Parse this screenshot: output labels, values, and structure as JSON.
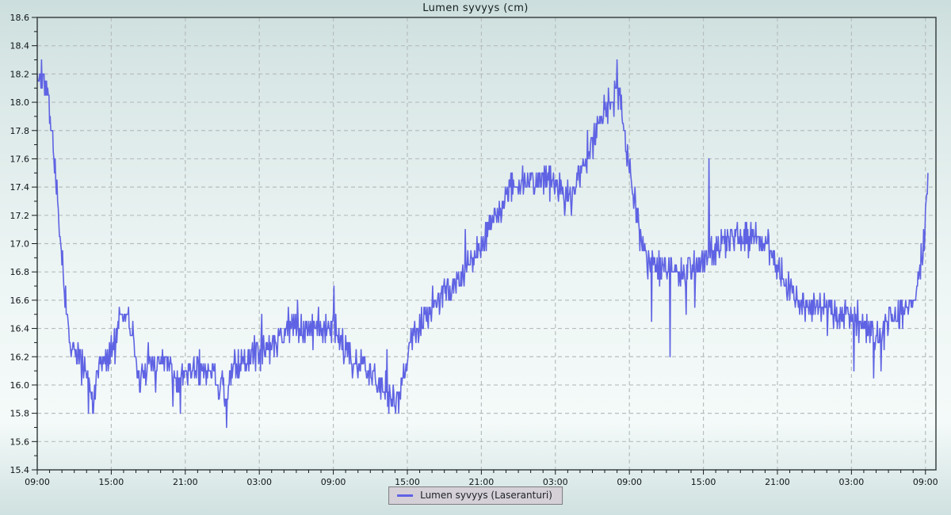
{
  "chart_data": {
    "type": "line",
    "title": "Lumen syvyys (cm)",
    "legend": {
      "label": "Lumen syvyys (Laseranturi)",
      "position": "bottom-center"
    },
    "x_axis": {
      "labels": [
        "09:00",
        "15:00",
        "21:00",
        "03:00",
        "09:00",
        "15:00",
        "21:00",
        "03:00",
        "09:00",
        "15:00",
        "21:00",
        "03:00",
        "09:00"
      ],
      "major_step_hours": 6,
      "minor_step_hours": 1,
      "domain_hours": [
        0,
        72.85
      ],
      "data_end_hour": 72.2
    },
    "y_axis": {
      "min": 15.4,
      "max": 18.6,
      "major_step": 0.2,
      "minor_step": 0.1,
      "unit": "cm"
    },
    "grid": {
      "style": "dashed",
      "majors_only": true
    },
    "colors": {
      "line": "#5f63e3",
      "grid": "#b7bdbd",
      "axis": "#3a4242",
      "text": "#101418",
      "legend_bg": "#d5d0d8",
      "legend_border": "#7d7d7d",
      "bg_top": "#ccdedd",
      "bg_mid": "#eef6f5",
      "bg_bottom": "#cfe1e0"
    },
    "series": [
      {
        "name": "Lumen syvyys (Laseranturi)",
        "sample_step_hours": 0.05,
        "noise_amplitude": 0.14,
        "quantize_step": 0.05,
        "trend_keypoints": [
          [
            0.0,
            18.18
          ],
          [
            0.6,
            18.18
          ],
          [
            0.9,
            18.05
          ],
          [
            1.2,
            17.75
          ],
          [
            1.5,
            17.45
          ],
          [
            1.8,
            17.1
          ],
          [
            2.1,
            16.8
          ],
          [
            2.4,
            16.5
          ],
          [
            2.7,
            16.28
          ],
          [
            3.1,
            16.2
          ],
          [
            3.6,
            16.15
          ],
          [
            4.2,
            16.05
          ],
          [
            4.45,
            15.88
          ],
          [
            4.7,
            15.93
          ],
          [
            5.0,
            16.12
          ],
          [
            5.6,
            16.17
          ],
          [
            6.3,
            16.3
          ],
          [
            6.7,
            16.48
          ],
          [
            7.3,
            16.48
          ],
          [
            7.8,
            16.35
          ],
          [
            8.2,
            16.05
          ],
          [
            8.5,
            16.0
          ],
          [
            8.9,
            16.12
          ],
          [
            9.6,
            16.17
          ],
          [
            10.8,
            16.14
          ],
          [
            11.55,
            15.97
          ],
          [
            11.8,
            16.1
          ],
          [
            12.6,
            16.13
          ],
          [
            13.6,
            16.1
          ],
          [
            14.4,
            16.1
          ],
          [
            14.65,
            15.95
          ],
          [
            14.9,
            16.05
          ],
          [
            15.1,
            15.95
          ],
          [
            15.3,
            15.78
          ],
          [
            15.55,
            16.05
          ],
          [
            16.3,
            16.17
          ],
          [
            17.5,
            16.2
          ],
          [
            18.6,
            16.25
          ],
          [
            19.6,
            16.35
          ],
          [
            20.5,
            16.42
          ],
          [
            21.3,
            16.42
          ],
          [
            22.3,
            16.38
          ],
          [
            23.3,
            16.4
          ],
          [
            24.0,
            16.42
          ],
          [
            24.4,
            16.35
          ],
          [
            25.2,
            16.18
          ],
          [
            26.0,
            16.15
          ],
          [
            26.8,
            16.1
          ],
          [
            27.6,
            16.0
          ],
          [
            28.3,
            15.95
          ],
          [
            28.7,
            15.9
          ],
          [
            29.2,
            15.92
          ],
          [
            29.8,
            16.12
          ],
          [
            30.3,
            16.3
          ],
          [
            31.0,
            16.42
          ],
          [
            31.8,
            16.52
          ],
          [
            32.7,
            16.62
          ],
          [
            33.6,
            16.72
          ],
          [
            34.5,
            16.78
          ],
          [
            35.3,
            16.88
          ],
          [
            36.2,
            17.02
          ],
          [
            37.1,
            17.18
          ],
          [
            37.9,
            17.32
          ],
          [
            38.6,
            17.42
          ],
          [
            39.5,
            17.45
          ],
          [
            40.3,
            17.42
          ],
          [
            41.2,
            17.45
          ],
          [
            42.0,
            17.45
          ],
          [
            42.7,
            17.35
          ],
          [
            43.3,
            17.32
          ],
          [
            44.0,
            17.5
          ],
          [
            44.7,
            17.65
          ],
          [
            45.3,
            17.78
          ],
          [
            46.0,
            17.92
          ],
          [
            46.5,
            18.0
          ],
          [
            47.0,
            18.05
          ],
          [
            47.35,
            17.95
          ],
          [
            47.8,
            17.6
          ],
          [
            48.3,
            17.35
          ],
          [
            48.9,
            17.05
          ],
          [
            49.5,
            16.88
          ],
          [
            50.3,
            16.82
          ],
          [
            51.2,
            16.85
          ],
          [
            52.1,
            16.78
          ],
          [
            53.0,
            16.85
          ],
          [
            54.0,
            16.88
          ],
          [
            54.9,
            16.95
          ],
          [
            55.8,
            17.02
          ],
          [
            56.6,
            17.05
          ],
          [
            57.5,
            17.05
          ],
          [
            58.4,
            17.02
          ],
          [
            59.2,
            16.98
          ],
          [
            60.0,
            16.82
          ],
          [
            60.8,
            16.68
          ],
          [
            61.7,
            16.6
          ],
          [
            62.7,
            16.58
          ],
          [
            63.7,
            16.55
          ],
          [
            64.7,
            16.52
          ],
          [
            65.7,
            16.48
          ],
          [
            66.6,
            16.45
          ],
          [
            67.5,
            16.38
          ],
          [
            68.2,
            16.35
          ],
          [
            69.0,
            16.45
          ],
          [
            69.9,
            16.48
          ],
          [
            70.7,
            16.55
          ],
          [
            71.3,
            16.7
          ],
          [
            71.7,
            16.9
          ],
          [
            71.95,
            17.15
          ],
          [
            72.2,
            17.42
          ]
        ],
        "spikes": [
          [
            0.35,
            18.3
          ],
          [
            4.5,
            15.8
          ],
          [
            11.6,
            15.82
          ],
          [
            15.35,
            15.7
          ],
          [
            18.2,
            16.5
          ],
          [
            21.1,
            16.62
          ],
          [
            22.8,
            16.55
          ],
          [
            24.05,
            16.68
          ],
          [
            28.5,
            15.8
          ],
          [
            29.3,
            15.8
          ],
          [
            46.98,
            18.3
          ],
          [
            49.8,
            16.45
          ],
          [
            51.3,
            16.2
          ],
          [
            52.6,
            16.5
          ],
          [
            53.3,
            16.55
          ],
          [
            54.45,
            17.6
          ],
          [
            66.2,
            16.1
          ],
          [
            67.8,
            16.05
          ],
          [
            68.4,
            16.1
          ],
          [
            72.2,
            17.48
          ]
        ]
      }
    ]
  }
}
